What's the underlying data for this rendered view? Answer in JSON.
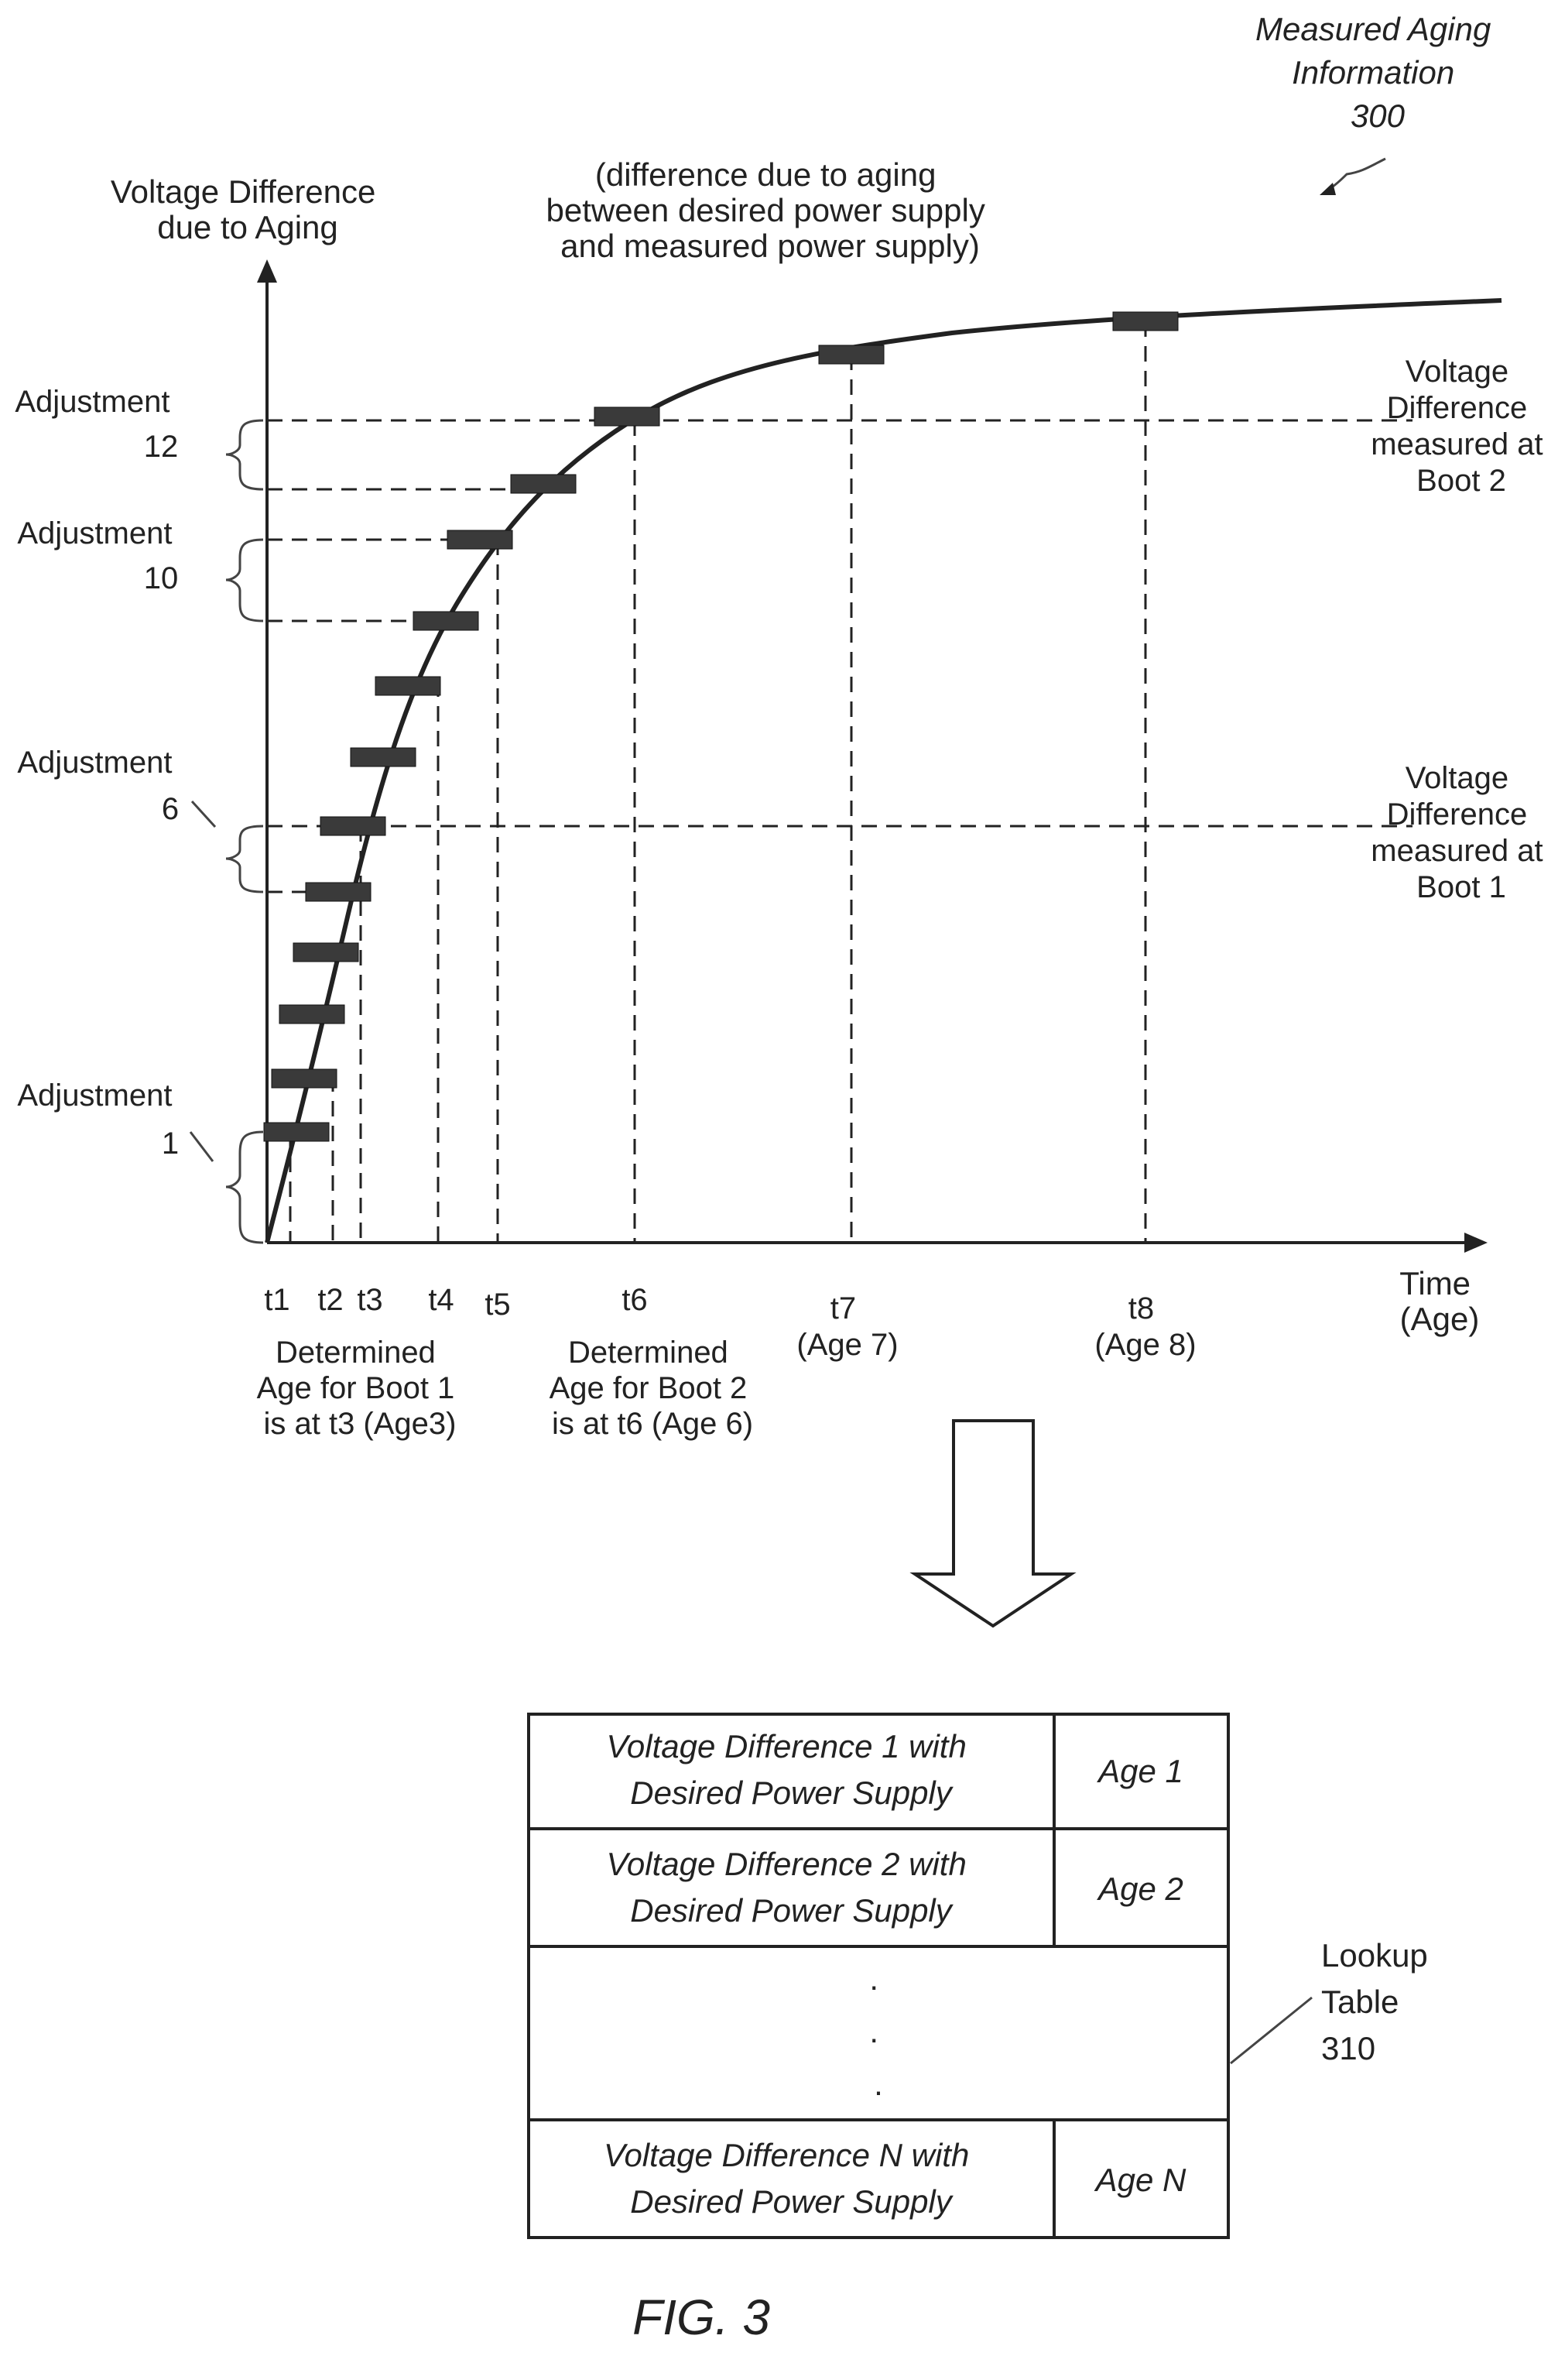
{
  "figure": {
    "title_lines": [
      "Measured Aging",
      "Information",
      "300"
    ],
    "caption": "FIG. 3"
  },
  "chart": {
    "y_axis_label_lines": [
      "Voltage Difference",
      "due to Aging"
    ],
    "annotation_lines": [
      "(difference due to aging",
      "between desired power supply",
      "and measured power supply)"
    ],
    "x_axis_label_lines": [
      "Time",
      "(Age)"
    ],
    "time_ticks": [
      {
        "lines": [
          "t1"
        ]
      },
      {
        "lines": [
          "t2"
        ]
      },
      {
        "lines": [
          "t3"
        ]
      },
      {
        "lines": [
          "t4"
        ]
      },
      {
        "lines": [
          "t5"
        ]
      },
      {
        "lines": [
          "t6"
        ]
      },
      {
        "lines": [
          "t7",
          "(Age 7)"
        ]
      },
      {
        "lines": [
          "t8",
          "(Age 8)"
        ]
      }
    ],
    "adjustments": [
      {
        "lines": [
          "Adjustment",
          "12"
        ]
      },
      {
        "lines": [
          "Adjustment",
          "10"
        ]
      },
      {
        "lines": [
          "Adjustment",
          "6"
        ]
      },
      {
        "lines": [
          "Adjustment",
          "1"
        ]
      }
    ],
    "boot2_label_lines": [
      "Voltage",
      "Difference",
      "measured at",
      "Boot 2"
    ],
    "boot1_label_lines": [
      "Voltage",
      "Difference",
      "measured at",
      "Boot 1"
    ],
    "boot1_age_lines": [
      "Determined",
      "Age for Boot 1",
      "is at t3 (Age3)"
    ],
    "boot2_age_lines": [
      "Determined",
      "Age for Boot 2",
      "is at t6 (Age 6)"
    ]
  },
  "lookup_table": {
    "label_lines": [
      "Lookup",
      "Table",
      "310"
    ],
    "rows": [
      {
        "difference_lines": [
          "Voltage Difference 1 with",
          "Desired Power Supply"
        ],
        "age": "Age 1"
      },
      {
        "difference_lines": [
          "Voltage Difference 2 with",
          "Desired Power Supply"
        ],
        "age": "Age 2"
      },
      {
        "ellipsis": [
          ".",
          ".",
          "."
        ]
      },
      {
        "difference_lines": [
          "Voltage Difference N with",
          "Desired Power Supply"
        ],
        "age": "Age N"
      }
    ]
  }
}
